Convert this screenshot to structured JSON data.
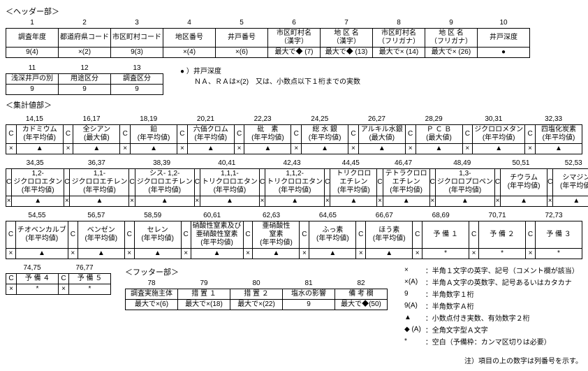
{
  "header": {
    "section_label": "＜ヘッダー部＞",
    "cols1_nums": [
      "1",
      "2",
      "3",
      "4",
      "5",
      "6",
      "7",
      "8",
      "9",
      "10"
    ],
    "cols1_labels": [
      "調査年度",
      "都道府県コード",
      "市区町村コード",
      "地区番号",
      "井戸番号",
      "市区町村名\n（漢字）",
      "地 区 名\n（漢字）",
      "市区町村名\n（フリガナ）",
      "地 区 名\n（フリガナ）",
      "井戸深度"
    ],
    "cols1_format": [
      "9(4)",
      "×(2)",
      "9(3)",
      "×(4)",
      "×(6)",
      "最大で◆ (7)",
      "最大で◆ (13)",
      "最大で× (14)",
      "最大で× (26)",
      "●"
    ],
    "depth_note": "● ）井戸深度\n　　ＮＡ、ＲＡは×(2)　又は、小数点以下１桁までの実数",
    "cols2_nums": [
      "11",
      "12",
      "13"
    ],
    "cols2_labels": [
      "浅深井戸の別",
      "用途区分",
      "調査区分"
    ],
    "cols2_format": [
      "9",
      "9",
      "9"
    ]
  },
  "agg": {
    "section_label": "＜集計値部＞",
    "rows": [
      {
        "nums": [
          "14,15",
          "16,17",
          "18,19",
          "20,21",
          "22,23",
          "24,25",
          "26,27",
          "28,29",
          "30,31",
          "32,33"
        ],
        "labels": [
          "カドミウム\n(年平均値)",
          "全シアン\n(最大値)",
          "鉛\n(年平均値)",
          "六価クロム\n(年平均値)",
          "砒　素\n(年平均値)",
          "総 水 銀\n(年平均値)",
          "アルキル水銀\n(最大値)",
          "Ｐ Ｃ Ｂ\n(最大値)",
          "ジクロロメタン\n(年平均値)",
          "四塩化炭素\n(年平均値)"
        ]
      },
      {
        "nums": [
          "34,35",
          "36,37",
          "38,39",
          "40,41",
          "42,43",
          "44,45",
          "46,47",
          "48,49",
          "50,51",
          "52,53"
        ],
        "labels": [
          "1,2-\nジクロロエタン\n(年平均値)",
          "1,1-\nジクロロエチレン\n(年平均値)",
          "シス- 1,2-\nジクロロエチレン\n(年平均値)",
          "1,1,1-\nトリクロロエタン\n(年平均値)",
          "1,1,2-\nトリクロロエタン\n(年平均値)",
          "トリクロロ\nエチレン\n(年平均値)",
          "テトラクロロ\nエチレン\n(年平均値)",
          "1,3-\nジクロロプロペン\n(年平均値)",
          "チウラム\n(年平均値)",
          "シマジン\n(年平均値)"
        ]
      },
      {
        "nums": [
          "54,55",
          "56,57",
          "58,59",
          "60,61",
          "62,63",
          "64,65",
          "66,67",
          "68,69",
          "70,71",
          "72,73"
        ],
        "labels": [
          "チオベンカルブ\n(年平均値)",
          "ベンゼン\n(年平均値)",
          "セレン\n(年平均値)",
          "硝酸性窒素及び\n亜硝酸性窒素\n(年平均値)",
          "亜硝酸性\n窒素\n(年平均値)",
          "ふっ素\n(年平均値)",
          "ほう素\n(年平均値)",
          "予 備 １",
          "予 備 ２",
          "予 備 ３"
        ],
        "rmark": [
          "▲",
          "▲",
          "▲",
          "▲",
          "▲",
          "▲",
          "▲",
          "*",
          "*",
          "*"
        ]
      }
    ],
    "yobi45_nums": [
      "74,75",
      "76,77"
    ],
    "yobi45_labels": [
      "予 備 ４",
      "予 備 ５"
    ]
  },
  "footer": {
    "section_label": "＜フッター部＞",
    "nums": [
      "78",
      "79",
      "80",
      "81",
      "82"
    ],
    "labels": [
      "調査実施主体",
      "措 置 １",
      "措 置 ２",
      "塩水の影響",
      "備 考 欄"
    ],
    "format": [
      "最大で×(6)",
      "最大で×(18)",
      "最大で×(22)",
      "9",
      "最大で◆(50)"
    ]
  },
  "legend": {
    "rows": [
      [
        "×",
        "：半角１文字の英字、記号（コメント欄が該当）"
      ],
      [
        "×(A)",
        "：半角Ａ文字の英数字、記号あるいはカタカナ"
      ],
      [
        "9",
        "：半角数字１桁"
      ],
      [
        "9(A)",
        "：半角数字Ａ桁"
      ],
      [
        "▲",
        "：小数点付き実数、有効数字２桁"
      ],
      [
        "◆ (A)",
        "：全角文字型Ａ文字"
      ],
      [
        "*",
        "：空白（予備枠：カンマ区切りは必要）"
      ]
    ]
  },
  "bottom_note": "注）項目の上の数字は列番号を示す。",
  "marks": {
    "c": "C",
    "x": "×",
    "tri": "▲",
    "star": "*"
  }
}
